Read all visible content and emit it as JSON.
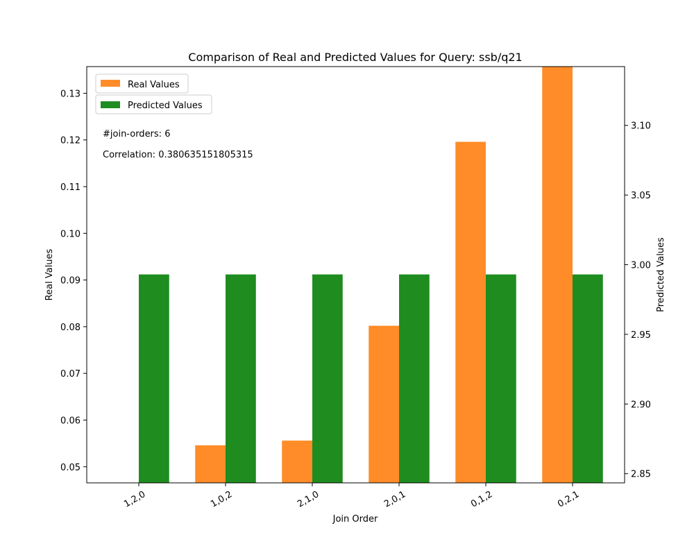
{
  "chart_data": {
    "type": "bar",
    "title": "Comparison of Real and Predicted Values for Query: ssb/q21",
    "xlabel": "Join Order",
    "ylabel_left": "Real Values",
    "ylabel_right": "Predicted Values",
    "categories": [
      "1,2,0",
      "1,0,2",
      "2,1,0",
      "2,0,1",
      "0,1,2",
      "0,2,1"
    ],
    "series": [
      {
        "name": "Real Values",
        "axis": "left",
        "color": "#ff8c28",
        "values": [
          0.0464,
          0.0546,
          0.0556,
          0.0802,
          0.1196,
          0.1357
        ]
      },
      {
        "name": "Predicted Values",
        "axis": "right",
        "color": "#1e8c1e",
        "values": [
          2.993,
          2.993,
          2.993,
          2.993,
          2.993,
          2.993
        ]
      }
    ],
    "ylim_left": [
      0.04655,
      0.13571
    ],
    "ylim_right": [
      2.8434,
      3.1422
    ],
    "yticks_left": [
      "0.05",
      "0.06",
      "0.07",
      "0.08",
      "0.09",
      "0.10",
      "0.11",
      "0.12",
      "0.13"
    ],
    "yticks_right": [
      "2.85",
      "2.90",
      "2.95",
      "3.00",
      "3.05",
      "3.10"
    ],
    "grid": false,
    "legend_position": "top-left",
    "annotations": [
      "#join-orders: 6",
      "Correlation: 0.380635151805315"
    ]
  }
}
